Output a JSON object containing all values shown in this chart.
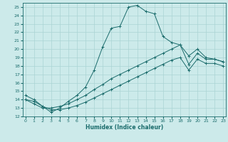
{
  "xlabel": "Humidex (Indice chaleur)",
  "bg_color": "#cceaea",
  "grid_color": "#aad4d4",
  "line_color": "#1a6b6b",
  "xlim": [
    -0.3,
    23.3
  ],
  "ylim": [
    12,
    25.5
  ],
  "yticks": [
    12,
    13,
    14,
    15,
    16,
    17,
    18,
    19,
    20,
    21,
    22,
    23,
    24,
    25
  ],
  "xticks": [
    0,
    1,
    2,
    3,
    4,
    5,
    6,
    7,
    8,
    9,
    10,
    11,
    12,
    13,
    14,
    15,
    16,
    17,
    18,
    19,
    20,
    21,
    22,
    23
  ],
  "line1_x": [
    0,
    1,
    2,
    3,
    4,
    5,
    6,
    7,
    8,
    9,
    10,
    11,
    12,
    13,
    14,
    15,
    16,
    17,
    18,
    19,
    20,
    21,
    22,
    23
  ],
  "line1_y": [
    14.5,
    14.0,
    13.2,
    12.5,
    13.0,
    13.8,
    14.5,
    15.5,
    17.5,
    20.3,
    22.5,
    22.7,
    25.0,
    25.2,
    24.5,
    24.2,
    21.5,
    20.8,
    20.5,
    19.2,
    20.0,
    19.0,
    18.8,
    18.5
  ],
  "line2_x": [
    0,
    1,
    2,
    3,
    4,
    5,
    6,
    7,
    8,
    9,
    10,
    11,
    12,
    13,
    14,
    15,
    16,
    17,
    18,
    19,
    20,
    21,
    22,
    23
  ],
  "line2_y": [
    14.0,
    13.5,
    13.0,
    13.0,
    13.2,
    13.5,
    14.0,
    14.5,
    15.2,
    15.8,
    16.5,
    17.0,
    17.5,
    18.0,
    18.5,
    19.0,
    19.5,
    20.0,
    20.5,
    18.2,
    19.5,
    18.8,
    18.8,
    18.5
  ],
  "line3_x": [
    0,
    1,
    2,
    3,
    4,
    5,
    6,
    7,
    8,
    9,
    10,
    11,
    12,
    13,
    14,
    15,
    16,
    17,
    18,
    19,
    20,
    21,
    22,
    23
  ],
  "line3_y": [
    14.0,
    13.8,
    13.2,
    12.8,
    12.8,
    13.0,
    13.3,
    13.7,
    14.2,
    14.7,
    15.2,
    15.7,
    16.2,
    16.7,
    17.2,
    17.7,
    18.2,
    18.7,
    19.0,
    17.5,
    18.8,
    18.3,
    18.3,
    18.0
  ]
}
